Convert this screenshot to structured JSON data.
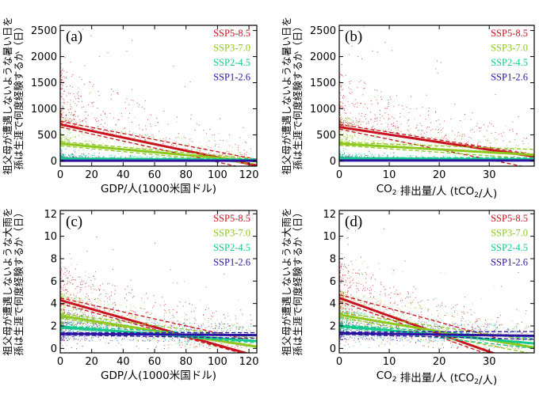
{
  "chart_data": [
    {
      "type": "scatter",
      "panel": "(a)",
      "xlabel": "GDP/人(1000米国ドル)",
      "ylabel_lines": [
        "祖父母が遭遇しないような暑い日を",
        "孫は生涯で何度経験するか（日）"
      ],
      "xlim": [
        0,
        125
      ],
      "ylim": [
        -100,
        2600
      ],
      "xticks": [
        0,
        20,
        40,
        60,
        80,
        100,
        120
      ],
      "yticks": [
        0,
        500,
        1000,
        1500,
        2000,
        2500
      ],
      "legend": [
        "SSP5-8.5",
        "SSP3-7.0",
        "SSP2-4.5",
        "SSP1-2.6"
      ],
      "series": [
        {
          "name": "SSP5-8.5",
          "color": "#c8141e",
          "fit": {
            "intercept": 700,
            "slope": -6.3
          },
          "ci": {
            "at0": [
              650,
              760
            ],
            "atmax": [
              -190,
              30
            ]
          }
        },
        {
          "name": "SSP3-7.0",
          "color": "#8cc81e",
          "fit": {
            "intercept": 330,
            "slope": -2.7
          },
          "ci": {
            "at0": [
              290,
              370
            ],
            "atmax": [
              -60,
              40
            ]
          }
        },
        {
          "name": "SSP2-4.5",
          "color": "#14c88c",
          "fit": {
            "intercept": 45,
            "slope": -0.25
          },
          "ci": {
            "at0": [
              35,
              55
            ],
            "atmax": [
              5,
              40
            ]
          }
        },
        {
          "name": "SSP1-2.6",
          "color": "#2d14a0",
          "fit": {
            "intercept": 5,
            "slope": 0
          },
          "ci": {
            "at0": [
              0,
              10
            ],
            "atmax": [
              0,
              10
            ]
          }
        }
      ]
    },
    {
      "type": "scatter",
      "panel": "(b)",
      "xlabel": "CO₂ 排出量/人 (tCO₂/人)",
      "ylabel_lines": [
        "祖父母が遭遇しないような暑い日を",
        "孫は生涯で何度経験するか（日）"
      ],
      "xlim": [
        0,
        39
      ],
      "ylim": [
        -100,
        2600
      ],
      "xticks": [
        0,
        10,
        20,
        30
      ],
      "yticks": [
        0,
        500,
        1000,
        1500,
        2000,
        2500
      ],
      "legend": [
        "SSP5-8.5",
        "SSP3-7.0",
        "SSP2-4.5",
        "SSP1-2.6"
      ],
      "series": [
        {
          "name": "SSP5-8.5",
          "color": "#c8141e",
          "fit": {
            "intercept": 650,
            "slope": -14.5
          },
          "ci": {
            "at0": [
              610,
              700
            ],
            "atmax": [
              -150,
              120
            ]
          }
        },
        {
          "name": "SSP3-7.0",
          "color": "#8cc81e",
          "fit": {
            "intercept": 330,
            "slope": -5.5
          },
          "ci": {
            "at0": [
              300,
              360
            ],
            "atmax": [
              40,
              220
            ]
          }
        },
        {
          "name": "SSP2-4.5",
          "color": "#14c88c",
          "fit": {
            "intercept": 50,
            "slope": -0.6
          },
          "ci": {
            "at0": [
              40,
              60
            ],
            "atmax": [
              10,
              60
            ]
          }
        },
        {
          "name": "SSP1-2.6",
          "color": "#2d14a0",
          "fit": {
            "intercept": 8,
            "slope": 0
          },
          "ci": {
            "at0": [
              3,
              13
            ],
            "atmax": [
              0,
              15
            ]
          }
        }
      ]
    },
    {
      "type": "scatter",
      "panel": "(c)",
      "xlabel": "GDP/人(1000米国ドル)",
      "ylabel_lines": [
        "祖父母が遭遇しないような大雨を",
        "孫は生涯で何度経験するか（日）"
      ],
      "xlim": [
        0,
        125
      ],
      "ylim": [
        -0.4,
        12.3
      ],
      "xticks": [
        0,
        20,
        40,
        60,
        80,
        100,
        120
      ],
      "yticks": [
        0,
        2,
        4,
        6,
        8,
        10,
        12
      ],
      "legend": [
        "SSP5-8.5",
        "SSP3-7.0",
        "SSP2-4.5",
        "SSP1-2.6"
      ],
      "series": [
        {
          "name": "SSP5-8.5",
          "color": "#c8141e",
          "fit": {
            "intercept": 4.3,
            "slope": -0.04
          },
          "ci": {
            "at0": [
              4.0,
              4.5
            ],
            "atmax": [
              -0.8,
              0.6
            ]
          }
        },
        {
          "name": "SSP3-7.0",
          "color": "#8cc81e",
          "fit": {
            "intercept": 2.9,
            "slope": -0.022
          },
          "ci": {
            "at0": [
              2.7,
              3.1
            ],
            "atmax": [
              0.1,
              0.9
            ]
          }
        },
        {
          "name": "SSP2-4.5",
          "color": "#14c88c",
          "fit": {
            "intercept": 1.9,
            "slope": -0.01
          },
          "ci": {
            "at0": [
              1.8,
              2.0
            ],
            "atmax": [
              0.5,
              1.1
            ]
          }
        },
        {
          "name": "SSP1-2.6",
          "color": "#2d14a0",
          "fit": {
            "intercept": 1.3,
            "slope": -0.001
          },
          "ci": {
            "at0": [
              1.2,
              1.4
            ],
            "atmax": [
              0.9,
              1.4
            ]
          }
        }
      ]
    },
    {
      "type": "scatter",
      "panel": "(d)",
      "xlabel": "CO₂ 排出量/人 (tCO₂/人)",
      "ylabel_lines": [
        "祖父母が遭遇しないような大雨を",
        "孫は生涯で何度経験するか（日）"
      ],
      "xlim": [
        0,
        39
      ],
      "ylim": [
        -0.4,
        12.3
      ],
      "xticks": [
        0,
        10,
        20,
        30
      ],
      "yticks": [
        0,
        2,
        4,
        6,
        8,
        10,
        12
      ],
      "legend": [
        "SSP5-8.5",
        "SSP3-7.0",
        "SSP2-4.5",
        "SSP1-2.6"
      ],
      "series": [
        {
          "name": "SSP5-8.5",
          "color": "#c8141e",
          "fit": {
            "intercept": 4.5,
            "slope": -0.16
          },
          "ci": {
            "at0": [
              4.2,
              4.8
            ],
            "atmax": [
              -2.0,
              0.0
            ]
          }
        },
        {
          "name": "SSP3-7.0",
          "color": "#8cc81e",
          "fit": {
            "intercept": 3.0,
            "slope": -0.075
          },
          "ci": {
            "at0": [
              2.8,
              3.2
            ],
            "atmax": [
              -0.5,
              0.7
            ]
          }
        },
        {
          "name": "SSP2-4.5",
          "color": "#14c88c",
          "fit": {
            "intercept": 2.0,
            "slope": -0.04
          },
          "ci": {
            "at0": [
              1.9,
              2.1
            ],
            "atmax": [
              0.0,
              0.9
            ]
          }
        },
        {
          "name": "SSP1-2.6",
          "color": "#2d14a0",
          "fit": {
            "intercept": 1.35,
            "slope": -0.006
          },
          "ci": {
            "at0": [
              1.25,
              1.45
            ],
            "atmax": [
              0.8,
              1.5
            ]
          }
        }
      ]
    }
  ]
}
